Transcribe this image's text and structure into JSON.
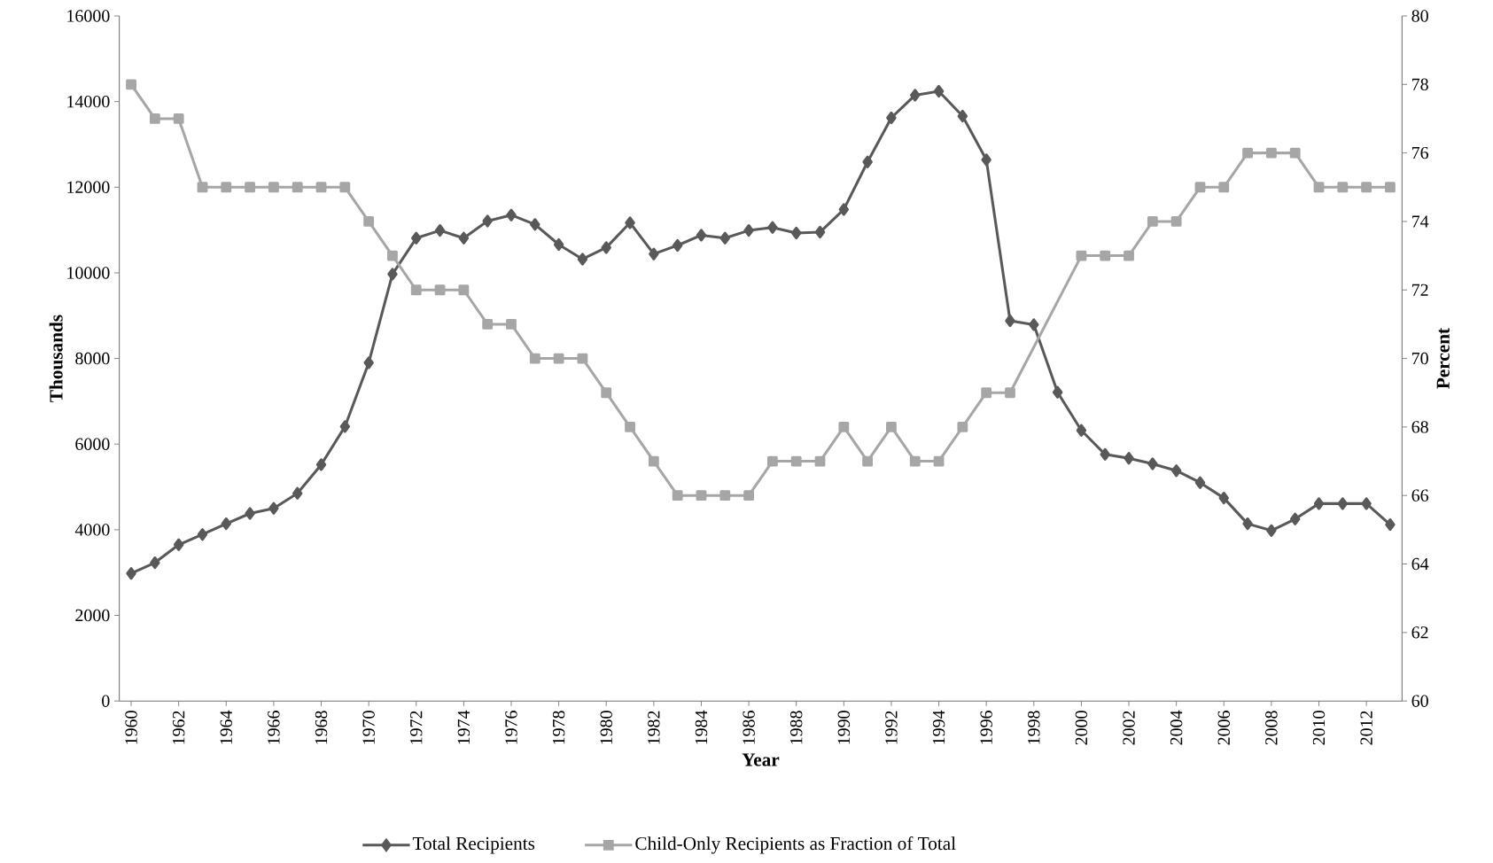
{
  "chart_data": {
    "type": "line",
    "xlabel": "Year",
    "ylabel": "Thousands",
    "y2label": "Percent",
    "x": [
      1960,
      1961,
      1962,
      1963,
      1964,
      1965,
      1966,
      1967,
      1968,
      1969,
      1970,
      1971,
      1972,
      1973,
      1974,
      1975,
      1976,
      1977,
      1978,
      1979,
      1980,
      1981,
      1982,
      1983,
      1984,
      1985,
      1986,
      1987,
      1988,
      1989,
      1990,
      1991,
      1992,
      1993,
      1994,
      1995,
      1996,
      1997,
      1998,
      1999,
      2000,
      2001,
      2002,
      2003,
      2004,
      2005,
      2006,
      2007,
      2008,
      2009,
      2010,
      2011,
      2012,
      2013
    ],
    "xlim": [
      1959.5,
      2013.5
    ],
    "xticks": [
      1960,
      1962,
      1964,
      1966,
      1968,
      1970,
      1972,
      1974,
      1976,
      1978,
      1980,
      1982,
      1984,
      1986,
      1988,
      1990,
      1992,
      1994,
      1996,
      1998,
      2000,
      2002,
      2004,
      2006,
      2008,
      2010,
      2012
    ],
    "ylim": [
      0,
      16000
    ],
    "yticks": [
      0,
      2000,
      4000,
      6000,
      8000,
      10000,
      12000,
      14000,
      16000
    ],
    "y2lim": [
      60,
      80
    ],
    "y2ticks": [
      60,
      62,
      64,
      66,
      68,
      70,
      72,
      74,
      76,
      78,
      80
    ],
    "legend": "bottom",
    "line_style": "solid",
    "series": [
      {
        "name": "Total Recipients",
        "color": "#595959",
        "marker": "diamond",
        "values": [
          2980,
          3230,
          3650,
          3890,
          4140,
          4380,
          4500,
          4850,
          5520,
          6410,
          7900,
          9970,
          10810,
          10990,
          10810,
          11210,
          11350,
          11130,
          10660,
          10320,
          10590,
          11170,
          10440,
          10640,
          10880,
          10810,
          10990,
          11060,
          10930,
          10950,
          11480,
          12590,
          13620,
          14150,
          14240,
          13660,
          12640,
          8880,
          8790,
          7210,
          6320,
          5760,
          5670,
          5540,
          5380,
          5100,
          4740,
          4140,
          3980,
          4250,
          4610,
          4610,
          4610,
          4120
        ]
      },
      {
        "name": "Child-Only Recipients as Fraction of Total",
        "color": "#a6a6a6",
        "marker": "square",
        "axis": "y2",
        "values": [
          78,
          77,
          77,
          75,
          75,
          75,
          75,
          75,
          75,
          75,
          74,
          73,
          72,
          72,
          72,
          71,
          71,
          70,
          70,
          70,
          69,
          68,
          67,
          66,
          66,
          66,
          66,
          67,
          67,
          67,
          68,
          67,
          68,
          67,
          67,
          68,
          69,
          69,
          null,
          null,
          73,
          73,
          73,
          74,
          74,
          75,
          75,
          76,
          76,
          76,
          75,
          75,
          75,
          75
        ]
      }
    ]
  }
}
